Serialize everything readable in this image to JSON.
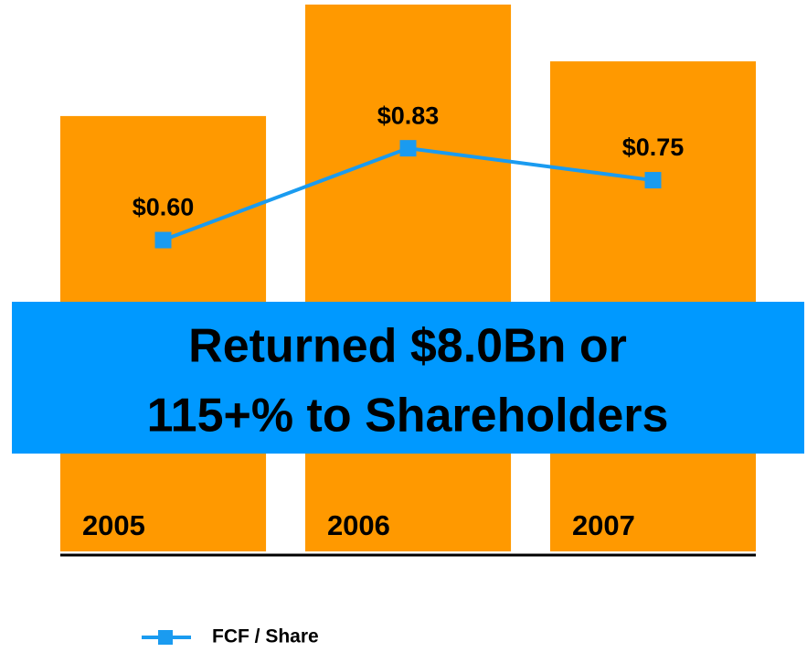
{
  "chart_data": {
    "type": "bar",
    "categories": [
      "2005",
      "2006",
      "2007"
    ],
    "bars": {
      "color": "#ff9900",
      "values": [
        2.07,
        2.6,
        2.33
      ]
    },
    "ylim": [
      0,
      2.6
    ],
    "series": [
      {
        "name": "FCF / Share",
        "color": "#1a9bf0",
        "axis": "y2",
        "values": [
          0.6,
          0.83,
          0.75
        ],
        "value_labels": [
          "$0.60",
          "$0.83",
          "$0.75"
        ]
      }
    ],
    "y2lim": [
      -0.18,
      1.19
    ],
    "annotations": [
      "Returned $8.0Bn or",
      "115+% to Shareholders"
    ],
    "banner_color": "#0099ff"
  }
}
